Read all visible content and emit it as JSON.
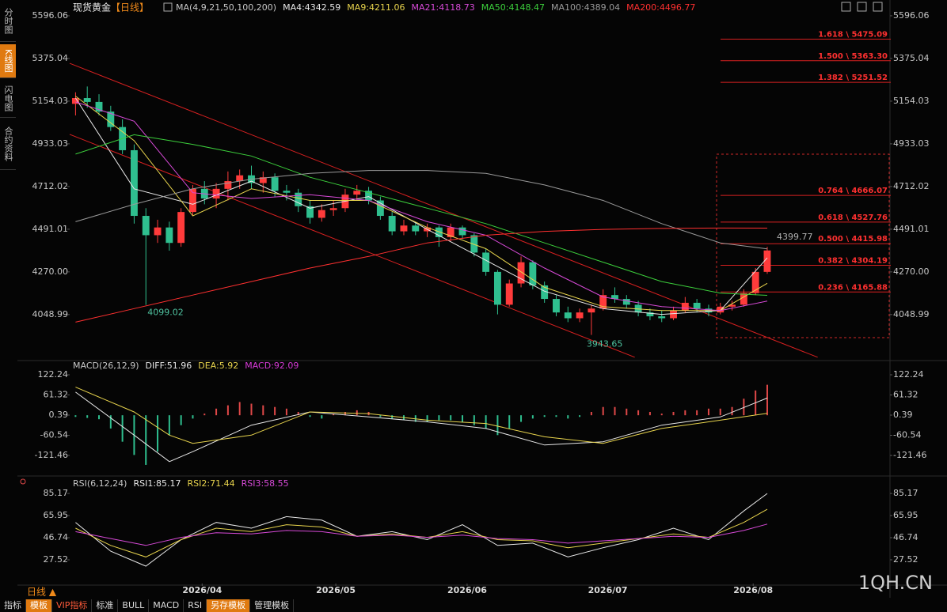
{
  "ui": {
    "sidebar": [
      "分时图",
      "K线图",
      "闪电图",
      "合约资料"
    ],
    "header": {
      "name": "现货黄金",
      "period": "【日线】"
    },
    "toolbar": [
      "指标",
      "模板",
      "VIP指标",
      "标准",
      "BULL",
      "MACD",
      "RSI",
      "另存模板",
      "管理模板"
    ],
    "period_label": "日线 ▲",
    "watermark": "1QH.CN"
  },
  "chart_data": [
    {
      "type": "candlestick",
      "title": "MA(4,9,21,50,100,200)",
      "open": [
        5140,
        5170,
        5150,
        5100,
        5020,
        4900,
        4560,
        4460,
        4500,
        4420,
        4580,
        4700,
        4650,
        4700,
        4740,
        4770,
        4730,
        4760,
        4690,
        4680,
        4610,
        4550,
        4590,
        4600,
        4670,
        4690,
        4640,
        4560,
        4480,
        4510,
        4480,
        4500,
        4450,
        4500,
        4460,
        4370,
        4270,
        4100,
        4210,
        4320,
        4200,
        4130,
        4060,
        4030,
        4060,
        4080,
        4150,
        4130,
        4100,
        4060,
        4040,
        4030,
        4070,
        4110,
        4080,
        4060,
        4090,
        4100,
        4160,
        4270
      ],
      "high": [
        5200,
        5230,
        5190,
        5130,
        5060,
        4930,
        4600,
        4540,
        4530,
        4600,
        4720,
        4740,
        4730,
        4790,
        4800,
        4820,
        4790,
        4780,
        4720,
        4700,
        4640,
        4620,
        4640,
        4700,
        4720,
        4710,
        4660,
        4580,
        4540,
        4530,
        4520,
        4510,
        4520,
        4510,
        4470,
        4390,
        4280,
        4230,
        4350,
        4330,
        4220,
        4150,
        4090,
        4080,
        4100,
        4180,
        4190,
        4150,
        4120,
        4080,
        4070,
        4090,
        4140,
        4130,
        4100,
        4110,
        4120,
        4180,
        4290,
        4399.77
      ],
      "low": [
        5080,
        5120,
        5080,
        5000,
        4880,
        4520,
        4099.02,
        4420,
        4380,
        4400,
        4560,
        4620,
        4600,
        4640,
        4700,
        4700,
        4680,
        4660,
        4640,
        4580,
        4520,
        4530,
        4560,
        4580,
        4640,
        4620,
        4540,
        4460,
        4460,
        4460,
        4450,
        4400,
        4430,
        4440,
        4350,
        4250,
        4050,
        4090,
        4190,
        4180,
        4110,
        4040,
        4010,
        4010,
        3943.65,
        4070,
        4110,
        4080,
        4040,
        4020,
        4010,
        4020,
        4060,
        4060,
        4040,
        4050,
        4070,
        4090,
        4150,
        4260
      ],
      "close": [
        5170,
        5150,
        5100,
        5020,
        4900,
        4560,
        4460,
        4500,
        4420,
        4580,
        4700,
        4650,
        4700,
        4740,
        4770,
        4730,
        4760,
        4690,
        4680,
        4610,
        4550,
        4590,
        4600,
        4670,
        4690,
        4640,
        4560,
        4480,
        4510,
        4480,
        4500,
        4450,
        4500,
        4460,
        4370,
        4270,
        4100,
        4210,
        4320,
        4200,
        4130,
        4060,
        4030,
        4060,
        4080,
        4150,
        4130,
        4100,
        4060,
        4040,
        4030,
        4070,
        4110,
        4080,
        4060,
        4090,
        4100,
        4160,
        4270,
        4381
      ],
      "up_color": "#ff3b3b",
      "down_color": "#2fbf8f",
      "xlim": [
        -0.5,
        69.2
      ],
      "ylim": [
        3815,
        5645
      ],
      "yticks": [
        5596.06,
        5375.04,
        5154.03,
        4933.03,
        4712.02,
        4491.01,
        {
          "value": 4270.0,
          "label": "4270.00"
        },
        4048.99
      ],
      "series": [
        {
          "name": "MA4:4342.59",
          "color": "#e8e8e8",
          "x": [
            0,
            5,
            10,
            15,
            20,
            25,
            30,
            35,
            40,
            45,
            50,
            55,
            59
          ],
          "values": [
            5170,
            4700,
            4620,
            4740,
            4600,
            4660,
            4490,
            4330,
            4170,
            4080,
            4050,
            4070,
            4342.59
          ]
        },
        {
          "name": "MA9:4211.06",
          "color": "#e8d44d",
          "x": [
            0,
            5,
            10,
            15,
            20,
            25,
            30,
            35,
            40,
            45,
            50,
            55,
            59
          ],
          "values": [
            5180,
            4950,
            4560,
            4700,
            4640,
            4640,
            4500,
            4390,
            4190,
            4090,
            4070,
            4070,
            4211.06
          ]
        },
        {
          "name": "MA21:4118.73",
          "color": "#d84ad8",
          "x": [
            0,
            5,
            10,
            15,
            20,
            25,
            30,
            35,
            40,
            45,
            50,
            55,
            59
          ],
          "values": [
            5150,
            5050,
            4680,
            4650,
            4670,
            4640,
            4530,
            4460,
            4290,
            4140,
            4090,
            4070,
            4118.73
          ]
        },
        {
          "name": "MA50:4148.47",
          "color": "#3ccf3c",
          "x": [
            0,
            5,
            10,
            15,
            20,
            25,
            30,
            35,
            40,
            45,
            50,
            55,
            59
          ],
          "values": [
            4880,
            4980,
            4930,
            4870,
            4760,
            4680,
            4600,
            4520,
            4420,
            4320,
            4220,
            4160,
            4148.47
          ]
        },
        {
          "name": "MA100:4389.04",
          "color": "#9a9a9a",
          "x": [
            0,
            5,
            10,
            15,
            20,
            25,
            30,
            35,
            40,
            45,
            50,
            55,
            59
          ],
          "values": [
            4530,
            4620,
            4700,
            4750,
            4780,
            4795,
            4795,
            4780,
            4720,
            4640,
            4520,
            4420,
            4389.04
          ]
        },
        {
          "name": "MA200:4496.77",
          "color": "#ff3030",
          "x": [
            0,
            5,
            10,
            15,
            20,
            25,
            30,
            35,
            40,
            45,
            50,
            55,
            59
          ],
          "values": [
            4010,
            4080,
            4150,
            4220,
            4290,
            4350,
            4420,
            4460,
            4480,
            4490,
            4495,
            4497,
            4496.77
          ]
        }
      ],
      "trendlines": [
        {
          "x": [
            -0.5,
            63.3
          ],
          "values": [
            5350,
            3828
          ]
        },
        {
          "x": [
            -0.5,
            47.7
          ],
          "values": [
            4982,
            3828
          ]
        }
      ],
      "fib_levels": [
        {
          "value": 5475.09,
          "label": "1.618 \\ 5475.09"
        },
        {
          "value": 5363.3,
          "label": "1.500 \\ 5363.30"
        },
        {
          "value": 5251.52,
          "label": "1.382 \\ 5251.52"
        },
        {
          "value": 4666.07,
          "label": "0.764 \\ 4666.07"
        },
        {
          "value": 4527.76,
          "label": "0.618 \\ 4527.76"
        },
        {
          "value": 4415.98,
          "label": "0.500 \\ 4415.98"
        },
        {
          "value": 4304.19,
          "label": "0.382 \\ 4304.19"
        },
        {
          "value": 4165.88,
          "label": "0.236 \\ 4165.88"
        }
      ],
      "annotations": [
        {
          "x": 6,
          "value": 4099.02
        },
        {
          "x": 44,
          "value": 3943.65
        },
        {
          "x": 59,
          "value": 4399.77
        }
      ]
    },
    {
      "type": "macd",
      "title": "MACD(26,12,9)",
      "xlim": [
        -0.5,
        69.2
      ],
      "ylim": [
        -178.8,
        160.5
      ],
      "yticks": [
        122.24,
        61.32,
        0.39,
        -60.54,
        -121.46
      ],
      "histogram": {
        "name": "MACD:92.09",
        "color": "#d63ad6",
        "up_color": "#e04848",
        "down_color": "#2fbf8f",
        "values": [
          -5,
          -8,
          -12,
          -40,
          -80,
          -120,
          -150,
          -110,
          -60,
          -30,
          -10,
          5,
          20,
          30,
          40,
          35,
          30,
          25,
          20,
          10,
          -5,
          -10,
          5,
          10,
          15,
          10,
          -5,
          -10,
          -15,
          -20,
          -20,
          -15,
          -15,
          -20,
          -30,
          -40,
          -60,
          -40,
          -20,
          -10,
          -5,
          -5,
          -10,
          -5,
          10,
          25,
          25,
          20,
          15,
          10,
          5,
          10,
          15,
          15,
          20,
          20,
          25,
          50,
          75,
          92.09
        ]
      },
      "series": [
        {
          "name": "DIFF:51.96",
          "color": "#e8e8e8",
          "x": [
            0,
            5,
            8,
            10,
            15,
            20,
            25,
            30,
            35,
            40,
            45,
            50,
            55,
            59
          ],
          "values": [
            70,
            -60,
            -140,
            -110,
            -30,
            10,
            -5,
            -20,
            -40,
            -90,
            -80,
            -30,
            -5,
            51.96
          ]
        },
        {
          "name": "DEA:5.92",
          "color": "#e8d44d",
          "x": [
            0,
            5,
            8,
            10,
            15,
            20,
            25,
            30,
            35,
            40,
            45,
            50,
            55,
            59
          ],
          "values": [
            85,
            10,
            -60,
            -85,
            -60,
            10,
            5,
            -15,
            -25,
            -65,
            -85,
            -40,
            -15,
            5.92
          ]
        }
      ]
    },
    {
      "type": "rsi",
      "title": "RSI(6,12,24)",
      "xlim": [
        -0.5,
        69.2
      ],
      "ylim": [
        6.9,
        91.4
      ],
      "yticks": [
        85.17,
        65.95,
        46.74,
        27.52
      ],
      "xticks": [
        {
          "value": 10.8,
          "label": "2026/04"
        },
        {
          "value": 22.2,
          "label": "2026/05"
        },
        {
          "value": 33.4,
          "label": "2026/06"
        },
        {
          "value": 45.4,
          "label": "2026/07"
        },
        {
          "value": 57.8,
          "label": "2026/08"
        }
      ],
      "series": [
        {
          "name": "RSI1:85.17",
          "color": "#e8e8e8",
          "x": [
            0,
            3,
            6,
            9,
            12,
            15,
            18,
            21,
            24,
            27,
            30,
            33,
            36,
            39,
            42,
            45,
            48,
            51,
            54,
            57,
            59
          ],
          "values": [
            60,
            35,
            22,
            45,
            60,
            55,
            65,
            62,
            48,
            52,
            45,
            58,
            40,
            42,
            30,
            38,
            45,
            55,
            45,
            70,
            85.17
          ]
        },
        {
          "name": "RSI2:71.44",
          "color": "#e8d44d",
          "x": [
            0,
            3,
            6,
            9,
            12,
            15,
            18,
            21,
            24,
            27,
            30,
            33,
            36,
            39,
            42,
            45,
            48,
            51,
            54,
            57,
            59
          ],
          "values": [
            55,
            40,
            30,
            45,
            55,
            52,
            58,
            56,
            48,
            50,
            47,
            52,
            45,
            44,
            38,
            42,
            46,
            50,
            47,
            60,
            71.44
          ]
        },
        {
          "name": "RSI3:58.55",
          "color": "#d84ad8",
          "x": [
            0,
            3,
            6,
            9,
            12,
            15,
            18,
            21,
            24,
            27,
            30,
            33,
            36,
            39,
            42,
            45,
            48,
            51,
            54,
            57,
            59
          ],
          "values": [
            52,
            46,
            40,
            47,
            51,
            50,
            53,
            52,
            48,
            49,
            47,
            49,
            46,
            45,
            42,
            44,
            46,
            48,
            47,
            53,
            58.55
          ]
        }
      ]
    }
  ]
}
